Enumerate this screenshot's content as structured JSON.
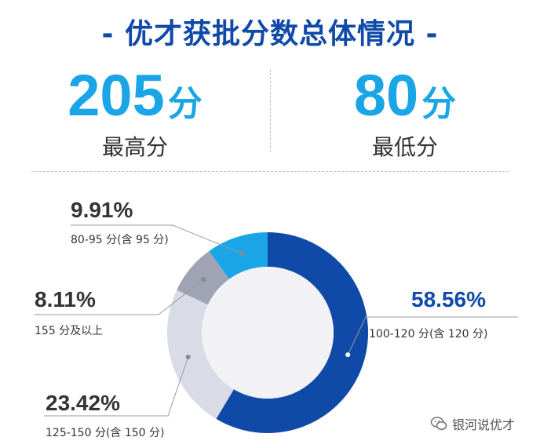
{
  "title": "- 优才获批分数总体情况 -",
  "stats": {
    "highest": {
      "value": "205",
      "unit": "分",
      "label": "最高分"
    },
    "lowest": {
      "value": "80",
      "unit": "分",
      "label": "最低分"
    }
  },
  "chart_data": {
    "type": "pie",
    "title": "",
    "slices": [
      {
        "label": "100-120 分(含 120 分)",
        "value": 58.56,
        "display": "58.56%",
        "color": "#0f4aa8"
      },
      {
        "label": "125-150 分(含 150 分)",
        "value": 23.42,
        "display": "23.42%",
        "color": "#d9dce6"
      },
      {
        "label": "155 分及以上",
        "value": 8.11,
        "display": "8.11%",
        "color": "#9fa3b3"
      },
      {
        "label": "80-95 分(含 95 分)",
        "value": 9.91,
        "display": "9.91%",
        "color": "#1aa5e6"
      }
    ],
    "start": "top",
    "direction": "clockwise",
    "style": "donut"
  },
  "watermark": {
    "text": "银河说优才"
  }
}
